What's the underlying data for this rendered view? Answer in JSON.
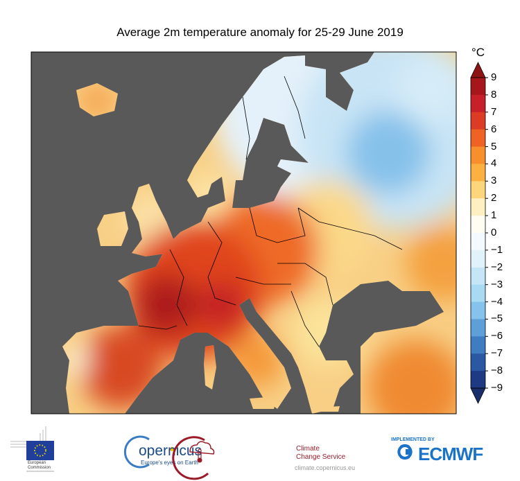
{
  "title": "Average 2m temperature anomaly for 25-29 June 2019",
  "map": {
    "region": "Europe",
    "variable": "2m temperature anomaly",
    "sea_color": "#595959",
    "land_border_color": "#000000"
  },
  "colorbar": {
    "unit": "°C",
    "ticks": [
      "9",
      "8",
      "7",
      "6",
      "5",
      "4",
      "3",
      "2",
      "1",
      "0",
      "−1",
      "−2",
      "−3",
      "−4",
      "−5",
      "−6",
      "−7",
      "−8",
      "−9"
    ],
    "range": [
      -9,
      9
    ],
    "colors": [
      "#a6171c",
      "#c8202a",
      "#dc3b25",
      "#ee6224",
      "#f7902c",
      "#fbb040",
      "#fdd57a",
      "#fef0c0",
      "#fffdf2",
      "#f4fafd",
      "#e2f2fb",
      "#c5e6f7",
      "#a8daf4",
      "#85c3ec",
      "#5e9fd8",
      "#3f7cc0",
      "#2a58a3",
      "#1e3a82"
    ],
    "over_color": "#8c1417",
    "under_color": "#1a2d6b"
  },
  "logos": {
    "eu": {
      "line1": "European",
      "line2": "Commission"
    },
    "copernicus": {
      "name": "opernicus",
      "tagline": "Europe's eyes on Earth"
    },
    "c3s": {
      "line1": "Climate",
      "line2": "Change Service",
      "url": "climate.copernicus.eu"
    },
    "ecmwf": {
      "implemented": "IMPLEMENTED BY",
      "name": "ECMWF",
      "color": "#1a73c8"
    }
  }
}
